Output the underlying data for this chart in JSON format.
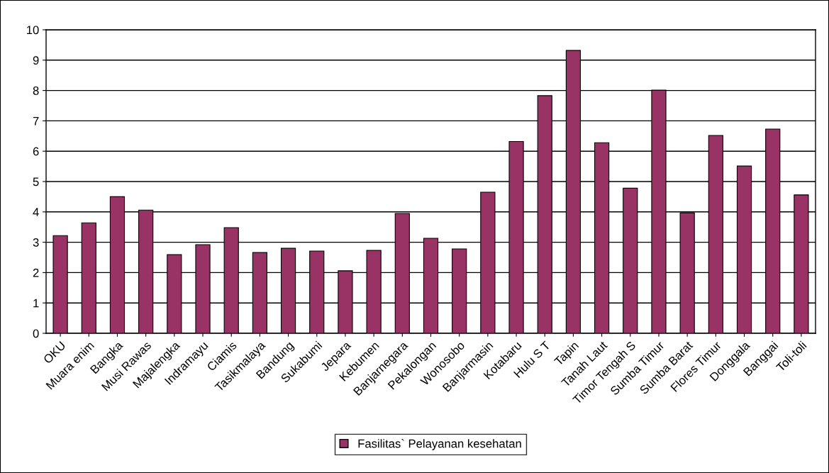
{
  "chart_data": {
    "type": "bar",
    "categories": [
      "OKU",
      "Muara enim",
      "Bangka",
      "Musi Rawas",
      "Majalengka",
      "Indramayu",
      "Ciamis",
      "Tasikmalaya",
      "Bandung",
      "Sukabumi",
      "Jepara",
      "Kebumen",
      "Banjarnegara",
      "Pekalongan",
      "Wonosobo",
      "Banjarmasin",
      "Kotabaru",
      "Hulu S T",
      "Tapin",
      "Tanah Laut",
      "Timor Tengah S",
      "Sumba Timur",
      "Sumba Barat",
      "Flores Timur",
      "Donggala",
      "Banggai",
      "Toli-toli"
    ],
    "series": [
      {
        "name": "Fasilitas` Pelayanan kesehatan",
        "color": "#993366",
        "values": [
          3.22,
          3.64,
          4.5,
          4.06,
          2.59,
          2.92,
          3.48,
          2.66,
          2.8,
          2.71,
          2.06,
          2.73,
          3.95,
          3.13,
          2.78,
          4.65,
          6.32,
          7.83,
          9.32,
          6.28,
          4.78,
          8.01,
          3.97,
          6.52,
          5.51,
          6.73,
          4.56
        ]
      }
    ],
    "ylim": [
      0,
      10
    ],
    "yticks": [
      0,
      1,
      2,
      3,
      4,
      5,
      6,
      7,
      8,
      9,
      10
    ],
    "grid": "y",
    "legend": "bottom"
  }
}
